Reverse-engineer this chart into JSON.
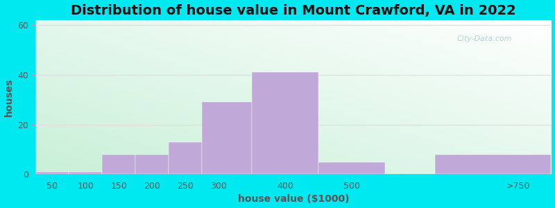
{
  "title": "Distribution of house value in Mount Crawford, VA in 2022",
  "xlabel": "house value ($1000)",
  "ylabel": "houses",
  "bar_labels": [
    "50",
    "100",
    "150",
    "200",
    "250",
    "300",
    "400",
    "500",
    ">750"
  ],
  "bar_heights": [
    1,
    1,
    8,
    8,
    13,
    29,
    41,
    5,
    8
  ],
  "bar_color": "#c0a8d8",
  "bar_edgecolor": "#c0a8d8",
  "ylim": [
    0,
    62
  ],
  "yticks": [
    0,
    20,
    40,
    60
  ],
  "xtick_positions": [
    50,
    100,
    150,
    200,
    250,
    300,
    400,
    500,
    750
  ],
  "xtick_labels": [
    "50",
    "100",
    "150",
    "200",
    "250",
    "300",
    "400",
    "500",
    ">750"
  ],
  "background_outer": "#00e8f0",
  "plot_bg_top_right": "#ffffff",
  "plot_bg_bottom_left": "#c8f0d8",
  "title_fontsize": 14,
  "axis_label_fontsize": 10,
  "tick_fontsize": 9,
  "tick_color": "#555555",
  "watermark_text": "City-Data.com",
  "grid_color": "#dddddd",
  "xlim_left": 25,
  "xlim_right": 800
}
